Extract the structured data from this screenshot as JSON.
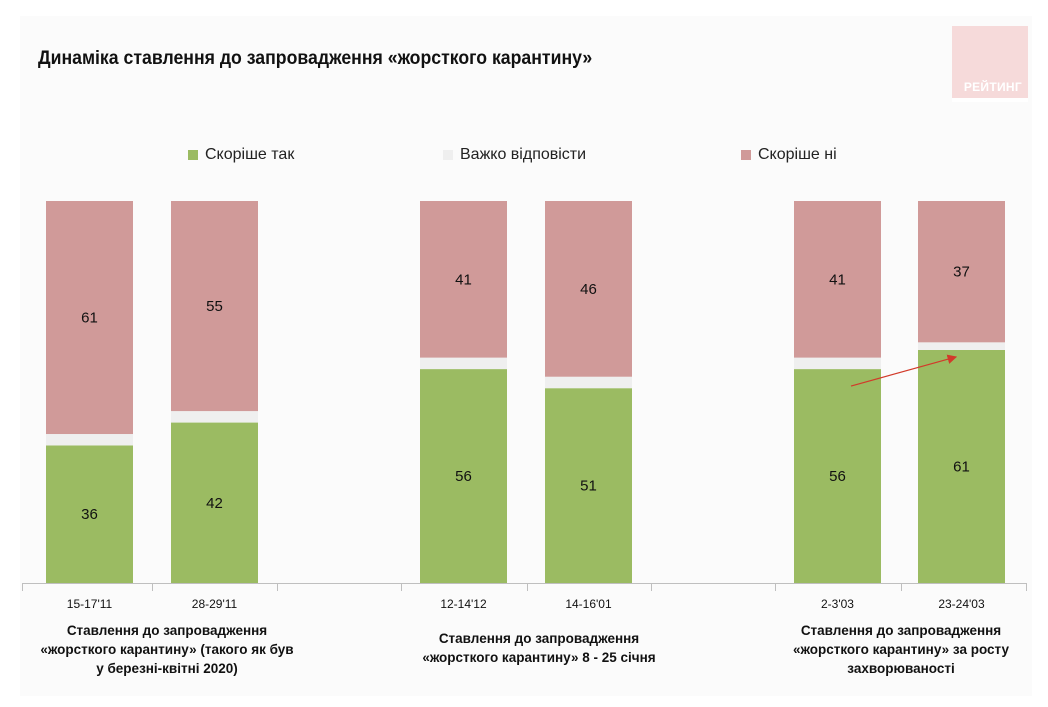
{
  "title": "Динаміка ставлення до запровадження «жорсткого карантину»",
  "logo": "РЕЙТИНГ",
  "colors": {
    "yes": "#9bbb62",
    "hard": "#efefef",
    "no": "#d09a99",
    "arrow": "#d23a2a"
  },
  "chart_data": {
    "type": "bar",
    "stacked": true,
    "ylim": [
      0,
      100
    ],
    "legend_position": "top",
    "categories": [
      "15-17'11",
      "28-29'11",
      "12-14'12",
      "14-16'01",
      "2-3'03",
      "23-24'03"
    ],
    "series": [
      {
        "name": "Скоріше так",
        "values": [
          36,
          42,
          56,
          51,
          56,
          61
        ]
      },
      {
        "name": "Важко відповісти",
        "values": [
          3,
          3,
          3,
          3,
          3,
          2
        ]
      },
      {
        "name": "Скоріше ні",
        "values": [
          61,
          55,
          41,
          46,
          41,
          37
        ]
      }
    ],
    "groups": [
      {
        "caption": [
          "Ставлення до запровадження",
          "«жорсткого карантину» (такого як був",
          "у березні-квітні 2020)"
        ]
      },
      {
        "caption": [
          "Ставлення до запровадження",
          "«жорсткого карантину» 8 - 25 січня"
        ]
      },
      {
        "caption": [
          "Ставлення до запровадження",
          "«жорсткого карантину» за росту",
          "захворюваності"
        ]
      }
    ]
  }
}
